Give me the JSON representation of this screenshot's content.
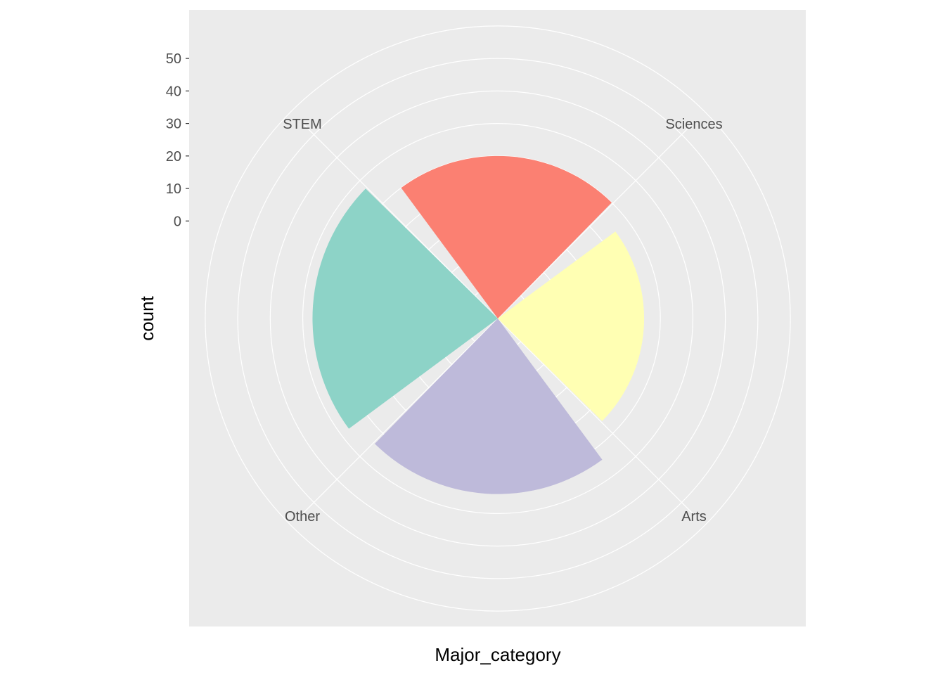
{
  "chart_data": {
    "type": "polar-bar",
    "xlabel": "Major_category",
    "ylabel": "count",
    "categories": [
      "Arts",
      "Other",
      "Sciences",
      "STEM"
    ],
    "values": [
      15,
      24,
      27,
      20
    ],
    "colors": [
      "#FFFFB3",
      "#BEBADA",
      "#8DD3C7",
      "#FB8072"
    ],
    "yticks": [
      0,
      10,
      20,
      30,
      40,
      50
    ],
    "radial_grid": [
      -20,
      -10,
      0,
      10,
      20,
      30,
      40,
      50,
      60
    ],
    "ylim": [
      -30,
      55
    ],
    "grid": true,
    "legend": "none"
  }
}
